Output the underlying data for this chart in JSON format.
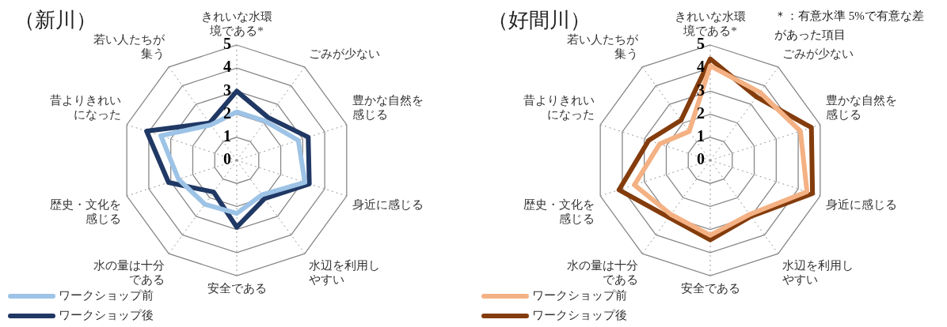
{
  "chart_data": [
    {
      "type": "radar",
      "title": "（新川）",
      "categories": [
        "きれいな水環境である*",
        "ごみが少ない",
        "豊かな自然を感じる",
        "身近に感じる",
        "水辺を利用しやすい",
        "安全である",
        "水の量は十分である",
        "歴史・文化を感じる",
        "昔よりきれいになった",
        "若い人たちが集う"
      ],
      "series": [
        {
          "name": "ワークショップ前",
          "color": "#9dc3e6",
          "values": [
            2.1,
            2.1,
            2.8,
            3.1,
            1.85,
            2.3,
            2.35,
            2.65,
            3.45,
            1.9
          ]
        },
        {
          "name": "ワークショップ後",
          "color": "#203864",
          "values": [
            3.0,
            2.3,
            3.25,
            3.3,
            2.05,
            2.9,
            1.7,
            3.1,
            4.1,
            2.0
          ]
        }
      ],
      "ylim": [
        0,
        5
      ],
      "yticks": [
        0,
        1,
        2,
        3,
        4,
        5
      ],
      "grid": true,
      "legend": "bottom left",
      "marker": "none",
      "line_style": "solid"
    },
    {
      "type": "radar",
      "title": "（好間川）",
      "categories": [
        "きれいな水環境である*",
        "ごみが少ない",
        "豊かな自然を感じる",
        "身近に感じる",
        "水辺を利用しやすい",
        "安全である",
        "水の量は十分である",
        "歴史・文化を感じる",
        "昔よりきれいになった",
        "若い人たちが集う"
      ],
      "series": [
        {
          "name": "ワークショップ前",
          "color": "#f4b183",
          "values": [
            4.1,
            3.65,
            4.1,
            4.4,
            2.9,
            3.25,
            2.9,
            3.45,
            2.3,
            1.55
          ]
        },
        {
          "name": "ワークショップ後",
          "color": "#843c0c",
          "values": [
            4.4,
            3.4,
            4.6,
            4.65,
            3.0,
            3.45,
            3.05,
            4.15,
            2.8,
            2.15
          ]
        }
      ],
      "ylim": [
        0,
        5
      ],
      "yticks": [
        0,
        1,
        2,
        3,
        4,
        5
      ],
      "grid": true,
      "legend": "bottom left",
      "marker": "none",
      "line_style": "solid",
      "annotations": [
        "＊：有意水準 5%で有意な差があった項目"
      ]
    }
  ]
}
